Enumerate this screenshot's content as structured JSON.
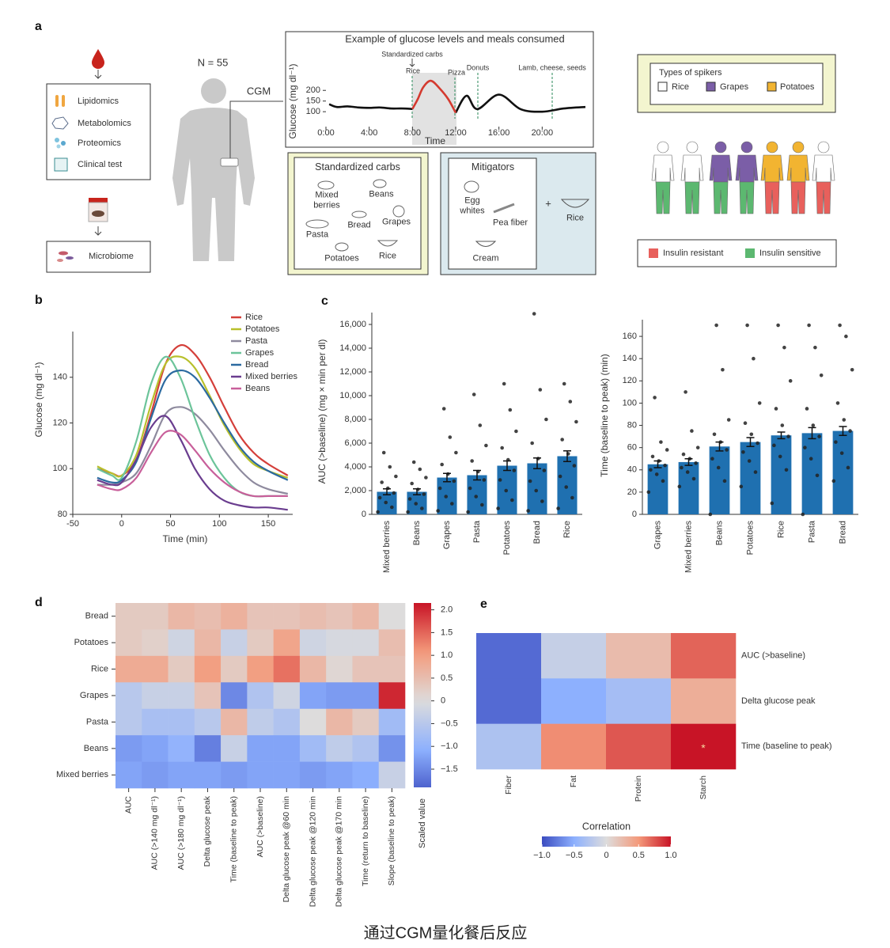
{
  "panel_labels": [
    "a",
    "b",
    "c",
    "d",
    "e"
  ],
  "diagram": {
    "omics": [
      "Lipidomics",
      "Metabolomics",
      "Proteomics",
      "Clinical test"
    ],
    "microbiome": "Microbiome",
    "cohort": "N = 55",
    "cgm": "CGM",
    "standardized_carbs": {
      "title": "Standardized carbs",
      "items": [
        "Mixed berries",
        "Beans",
        "Bread",
        "Grapes",
        "Pasta",
        "Potatoes",
        "Rice"
      ]
    },
    "mitigators": {
      "title": "Mitigators",
      "items": [
        "Egg whites",
        "Pea fiber",
        "Cream"
      ],
      "plus": "+",
      "with": "Rice"
    },
    "spikers": {
      "title": "Types of spikers",
      "items": [
        "Rice",
        "Grapes",
        "Potatoes"
      ],
      "colors": [
        "#ffffff",
        "#7b5ea7",
        "#f2b431"
      ]
    },
    "insulin": {
      "items": [
        "Insulin resistant",
        "Insulin sensitive"
      ],
      "colors": [
        "#e8605c",
        "#5cb870"
      ]
    }
  },
  "chart_data": [
    {
      "type": "line",
      "title": "Example of glucose levels and meals consumed",
      "x": [
        0.3,
        1,
        2,
        3,
        4,
        5,
        6,
        7,
        8,
        8.5,
        9,
        9.7,
        10.5,
        11.3,
        12,
        13,
        14,
        16,
        18,
        20,
        22,
        24
      ],
      "series": [
        {
          "color": "#111111",
          "values": [
            135,
            122,
            125,
            120,
            118,
            120,
            115,
            115,
            113,
            null,
            null,
            null,
            null,
            null,
            95,
            175,
            112,
            180,
            112,
            100,
            115,
            122
          ]
        },
        {
          "color": "#d43a2f",
          "values": [
            null,
            null,
            null,
            null,
            null,
            null,
            null,
            null,
            113,
            160,
            215,
            245,
            210,
            160,
            95,
            null,
            null,
            null,
            null,
            null,
            null,
            null
          ]
        }
      ],
      "xlim": [
        0,
        24
      ],
      "xticks": [
        {
          "value": 0,
          "label": "0:00"
        },
        {
          "value": 4,
          "label": "4:00"
        },
        {
          "value": 8,
          "label": "8:00"
        },
        {
          "value": 12,
          "label": "12:00"
        },
        {
          "value": 16,
          "label": "16:00"
        },
        {
          "value": 20,
          "label": "20:00"
        }
      ],
      "ylim": [
        30,
        290
      ],
      "yticks": [
        100,
        150,
        200
      ],
      "xlabel": "Time",
      "ylabel": "Glucose (mg dl⁻¹)",
      "annotations": [
        "Standardized carbs",
        "Rice",
        "Pizza",
        "Donuts",
        "Lamb, cheese, seeds"
      ]
    },
    {
      "type": "line",
      "x": [
        -25,
        -10,
        0,
        15,
        30,
        45,
        60,
        75,
        90,
        105,
        120,
        135,
        150,
        170
      ],
      "series": [
        {
          "name": "Rice",
          "color": "#d43f3a",
          "values": [
            100,
            98,
            97,
            104,
            124,
            146,
            154,
            150,
            140,
            127,
            115,
            107,
            102,
            97
          ]
        },
        {
          "name": "Potatoes",
          "color": "#b8c02c",
          "values": [
            101,
            98,
            97,
            106,
            128,
            146,
            149,
            144,
            132,
            119,
            109,
            102,
            99,
            96
          ]
        },
        {
          "name": "Pasta",
          "color": "#8e8a9e",
          "values": [
            93,
            93,
            94,
            98,
            110,
            124,
            127,
            124,
            117,
            108,
            100,
            94,
            91,
            89
          ]
        },
        {
          "name": "Grapes",
          "color": "#6cc49a",
          "values": [
            100,
            97,
            96,
            112,
            137,
            149,
            140,
            122,
            106,
            96,
            90,
            88,
            88,
            88
          ]
        },
        {
          "name": "Bread",
          "color": "#2b6aa0",
          "values": [
            96,
            94,
            95,
            103,
            122,
            139,
            143,
            140,
            131,
            120,
            110,
            103,
            99,
            95
          ]
        },
        {
          "name": "Mixed berries",
          "color": "#6a3d8f",
          "values": [
            95,
            93,
            94,
            104,
            118,
            123,
            113,
            100,
            91,
            86,
            84,
            83,
            83,
            82
          ]
        },
        {
          "name": "Beans",
          "color": "#c85f9a",
          "values": [
            93,
            91,
            91,
            96,
            107,
            116,
            115,
            108,
            100,
            94,
            90,
            88,
            88,
            88
          ]
        }
      ],
      "xlim": [
        -50,
        175
      ],
      "xticks": [
        -50,
        0,
        50,
        100,
        150
      ],
      "ylim": [
        80,
        160
      ],
      "yticks": [
        80,
        100,
        120,
        140
      ],
      "xlabel": "Time (min)",
      "ylabel": "Glucose (mg dl⁻¹)",
      "legend": "upper right"
    },
    {
      "type": "bar",
      "categories": [
        "Mixed berries",
        "Beans",
        "Grapes",
        "Pasta",
        "Potatoes",
        "Bread",
        "Rice"
      ],
      "values": [
        1900,
        1900,
        3100,
        3300,
        4100,
        4300,
        4900
      ],
      "errors": [
        250,
        250,
        350,
        400,
        400,
        450,
        450
      ],
      "points": [
        [
          200,
          600,
          1000,
          1400,
          1800,
          2200,
          2700,
          3200,
          4000,
          5200
        ],
        [
          200,
          500,
          900,
          1300,
          1700,
          2100,
          2600,
          3100,
          3800,
          4400
        ],
        [
          300,
          900,
          1500,
          2200,
          2800,
          3400,
          4200,
          5200,
          6500,
          8900
        ],
        [
          200,
          800,
          1500,
          2200,
          2900,
          3600,
          4500,
          5800,
          7500,
          10100
        ],
        [
          500,
          1200,
          2000,
          2900,
          3700,
          4600,
          5600,
          7000,
          8800,
          11000
        ],
        [
          300,
          1100,
          2000,
          2800,
          3700,
          4700,
          6000,
          8000,
          10500,
          16900
        ],
        [
          500,
          1400,
          2300,
          3200,
          4100,
          5100,
          6300,
          7800,
          9500,
          11000
        ]
      ],
      "color": "#1f70b0",
      "point_color": "#222222",
      "ylim": [
        0,
        17000
      ],
      "yticks": [
        0,
        {
          "value": 2000,
          "label": "2,000"
        },
        {
          "value": 4000,
          "label": "4,000"
        },
        {
          "value": 6000,
          "label": "6,000"
        },
        {
          "value": 8000,
          "label": "8,000"
        },
        {
          "value": 10000,
          "label": "10,000"
        },
        {
          "value": 12000,
          "label": "12,000"
        },
        {
          "value": 14000,
          "label": "14,000"
        },
        {
          "value": 16000,
          "label": "16,000"
        }
      ],
      "ylabel": "AUC (>baseline) (mg × min per dl)"
    },
    {
      "type": "bar",
      "categories": [
        "Grapes",
        "Mixed berries",
        "Beans",
        "Potatoes",
        "Rice",
        "Pasta",
        "Bread"
      ],
      "values": [
        45,
        47,
        61,
        65,
        71,
        73,
        75
      ],
      "errors": [
        3,
        3,
        4,
        4,
        3,
        5,
        4
      ],
      "points": [
        [
          20,
          30,
          36,
          40,
          44,
          48,
          52,
          58,
          65,
          105
        ],
        [
          25,
          32,
          38,
          42,
          46,
          50,
          54,
          60,
          75,
          110
        ],
        [
          0,
          30,
          42,
          50,
          58,
          65,
          72,
          85,
          130,
          170
        ],
        [
          25,
          38,
          48,
          56,
          64,
          72,
          82,
          100,
          140,
          170
        ],
        [
          10,
          40,
          52,
          62,
          70,
          80,
          95,
          120,
          150,
          170
        ],
        [
          0,
          35,
          50,
          60,
          70,
          80,
          95,
          125,
          150,
          170
        ],
        [
          30,
          42,
          55,
          65,
          75,
          85,
          100,
          130,
          160,
          170
        ]
      ],
      "color": "#1f70b0",
      "point_color": "#222222",
      "ylim": [
        0,
        175
      ],
      "yticks": [
        0,
        20,
        40,
        60,
        80,
        100,
        120,
        140,
        160
      ],
      "ylabel": "Time (baseline to peak) (min)"
    },
    {
      "type": "heatmap",
      "rows": [
        "Bread",
        "Potatoes",
        "Rice",
        "Grapes",
        "Pasta",
        "Beans",
        "Mixed berries"
      ],
      "columns": [
        "AUC",
        "AUC (>140 mg dl⁻¹)",
        "AUC (>180 mg dl⁻¹)",
        "Delta glucose peak",
        "Time (baseline to peak)",
        "AUC (>baseline)",
        "Delta glucose peak @60 min",
        "Delta glucose peak @120 min",
        "Delta glucose peak @170 min",
        "Time (return to baseline)",
        "Slope (baseline to peak)"
      ],
      "values": [
        [
          0.3,
          0.3,
          0.6,
          0.5,
          0.7,
          0.4,
          0.4,
          0.5,
          0.4,
          0.6,
          0.0
        ],
        [
          0.3,
          0.2,
          -0.2,
          0.6,
          -0.3,
          0.3,
          0.9,
          -0.2,
          -0.1,
          -0.1,
          0.5
        ],
        [
          0.8,
          0.8,
          0.3,
          1.0,
          0.3,
          1.0,
          1.4,
          0.6,
          0.1,
          0.4,
          0.4
        ],
        [
          -0.5,
          -0.3,
          -0.3,
          0.4,
          -1.5,
          -0.6,
          -0.2,
          -1.2,
          -1.3,
          -1.3,
          2.0
        ],
        [
          -0.5,
          -0.7,
          -0.7,
          -0.5,
          0.6,
          -0.4,
          -0.6,
          0.0,
          0.6,
          0.3,
          -0.8
        ],
        [
          -1.3,
          -1.2,
          -1.0,
          -1.6,
          -0.3,
          -1.2,
          -1.2,
          -0.8,
          -0.4,
          -0.6,
          -1.4
        ],
        [
          -1.2,
          -1.3,
          -1.2,
          -1.2,
          -1.3,
          -1.2,
          -1.2,
          -1.3,
          -1.2,
          -1.1,
          -0.3
        ]
      ],
      "clim": [
        -1.9,
        2.15
      ],
      "cticks": [
        {
          "value": 2.0,
          "label": "2.0"
        },
        {
          "value": 1.5,
          "label": "1.5"
        },
        {
          "value": 1.0,
          "label": "1.0"
        },
        {
          "value": 0.5,
          "label": "0.5"
        },
        0,
        {
          "value": -0.5,
          "label": "−0.5"
        },
        {
          "value": -1.0,
          "label": "−1.0"
        },
        {
          "value": -1.5,
          "label": "−1.5"
        }
      ],
      "colorbar_label": "Scaled value"
    },
    {
      "type": "heatmap",
      "rows": [
        "AUC (>baseline)",
        "Delta glucose peak",
        "Time (baseline to peak)"
      ],
      "columns": [
        "Fiber",
        "Fat",
        "Protein",
        "Starch"
      ],
      "values": [
        [
          -0.85,
          -0.15,
          0.25,
          0.7
        ],
        [
          -0.85,
          -0.5,
          -0.35,
          0.35
        ],
        [
          -0.3,
          0.55,
          0.75,
          1.0
        ]
      ],
      "cell_labels": [
        [
          null,
          null,
          null,
          null
        ],
        [
          null,
          null,
          null,
          null
        ],
        [
          null,
          null,
          null,
          "*"
        ]
      ],
      "clim": [
        -1,
        1
      ],
      "cticks": [
        {
          "value": -1.0,
          "label": "−1.0"
        },
        {
          "value": -0.5,
          "label": "−0.5"
        },
        0,
        {
          "value": 0.5,
          "label": "0.5"
        },
        {
          "value": 1.0,
          "label": "1.0"
        }
      ],
      "colorbar_title": "Correlation"
    }
  ],
  "caption": "通过CGM量化餐后反应"
}
